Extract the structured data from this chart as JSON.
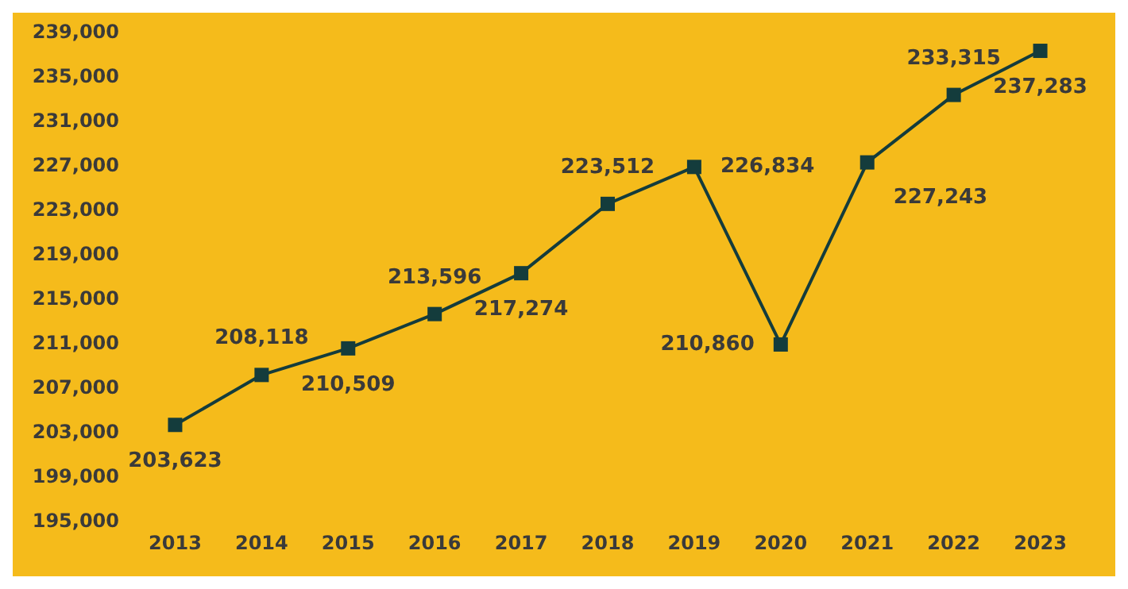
{
  "chart_data": {
    "type": "line",
    "categories": [
      "2013",
      "2014",
      "2015",
      "2016",
      "2017",
      "2018",
      "2019",
      "2020",
      "2021",
      "2022",
      "2023"
    ],
    "series": [
      {
        "color": "#143c3c",
        "values": [
          203623,
          208118,
          210509,
          213596,
          217274,
          223512,
          226834,
          210860,
          227243,
          233315,
          237283
        ],
        "value_labels": [
          "203,623",
          "208,118",
          "210,509",
          "213,596",
          "217,274",
          "223,512",
          "226,834",
          "210,860",
          "227,243",
          "233,315",
          "237,283"
        ]
      }
    ],
    "ylim": [
      195000,
      239000
    ],
    "yticks": [
      {
        "value": 195000,
        "label": "195,000"
      },
      {
        "value": 199000,
        "label": "199,000"
      },
      {
        "value": 203000,
        "label": "203,000"
      },
      {
        "value": 207000,
        "label": "207,000"
      },
      {
        "value": 211000,
        "label": "211,000"
      },
      {
        "value": 215000,
        "label": "215,000"
      },
      {
        "value": 219000,
        "label": "219,000"
      },
      {
        "value": 223000,
        "label": "223,000"
      },
      {
        "value": 227000,
        "label": "227,000"
      },
      {
        "value": 231000,
        "label": "231,000"
      },
      {
        "value": 235000,
        "label": "235,000"
      },
      {
        "value": 239000,
        "label": "239,000"
      }
    ],
    "grid": false,
    "marker": "square",
    "line_style": "solid"
  }
}
